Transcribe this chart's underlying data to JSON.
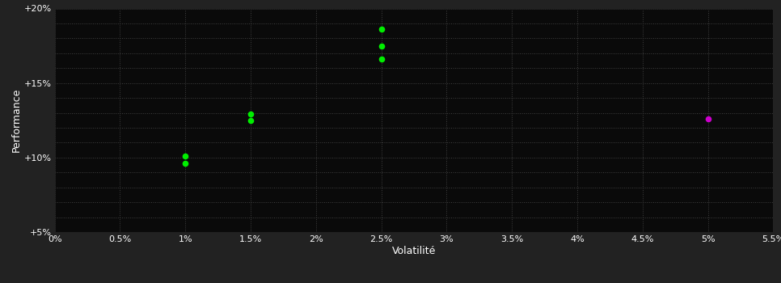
{
  "background_color": "#222222",
  "plot_bg_color": "#0a0a0a",
  "grid_color": "#404040",
  "text_color": "#ffffff",
  "green_points": [
    [
      1.0,
      10.1
    ],
    [
      1.0,
      9.6
    ],
    [
      1.5,
      12.9
    ],
    [
      1.5,
      12.5
    ],
    [
      2.5,
      18.6
    ],
    [
      2.5,
      17.5
    ],
    [
      2.5,
      16.6
    ]
  ],
  "magenta_points": [
    [
      5.0,
      12.6
    ]
  ],
  "green_color": "#00ee00",
  "magenta_color": "#cc00cc",
  "xlabel": "Volatilité",
  "ylabel": "Performance",
  "xlim": [
    0.0,
    5.5
  ],
  "ylim": [
    5.0,
    20.0
  ],
  "xticks": [
    0.0,
    0.5,
    1.0,
    1.5,
    2.0,
    2.5,
    3.0,
    3.5,
    4.0,
    4.5,
    5.0,
    5.5
  ],
  "yticks_major": [
    5.0,
    10.0,
    15.0,
    20.0
  ],
  "yticks_minor": [
    5.0,
    6.0,
    7.0,
    8.0,
    9.0,
    10.0,
    11.0,
    12.0,
    13.0,
    14.0,
    15.0,
    16.0,
    17.0,
    18.0,
    19.0,
    20.0
  ],
  "ytick_labels": [
    "+5%",
    "+10%",
    "+15%",
    "+20%"
  ],
  "xtick_labels": [
    "0%",
    "0.5%",
    "1%",
    "1.5%",
    "2%",
    "2.5%",
    "3%",
    "3.5%",
    "4%",
    "4.5%",
    "5%",
    "5.5%"
  ],
  "marker_size": 30,
  "figsize": [
    9.66,
    3.5
  ],
  "dpi": 100
}
